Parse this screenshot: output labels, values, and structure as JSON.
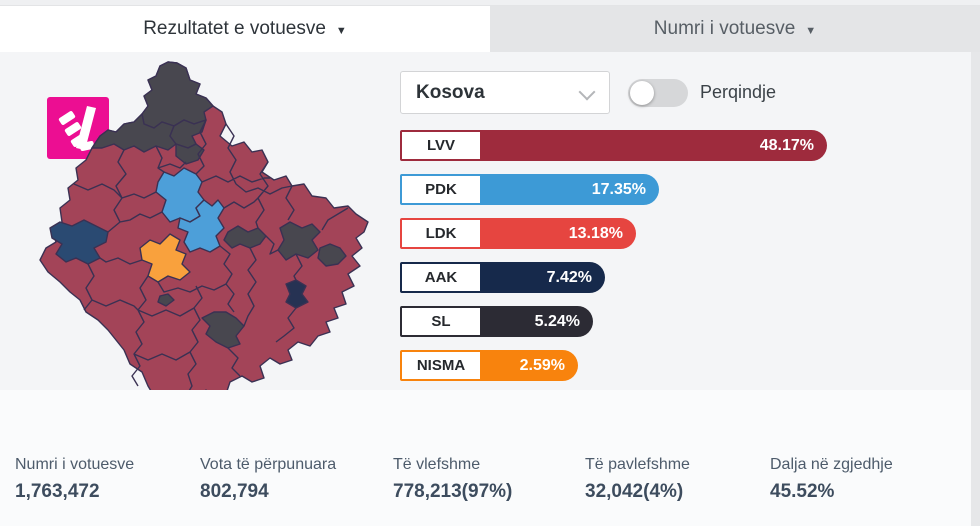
{
  "tabs": [
    {
      "label": "Rezultatet e votuesve",
      "caret": "▼",
      "active": true
    },
    {
      "label": "Numri i votuesve",
      "caret": "▼",
      "active": false
    }
  ],
  "controls": {
    "region_select": {
      "value": "Kosova"
    },
    "percentage_toggle": {
      "label": "Perqindje",
      "state": "off"
    }
  },
  "parties": [
    {
      "name": "LVV",
      "pct": "48.17%",
      "value": 48.17,
      "color": "#9e2b3d"
    },
    {
      "name": "PDK",
      "pct": "17.35%",
      "value": 17.35,
      "color": "#3d9ad6"
    },
    {
      "name": "LDK",
      "pct": "13.18%",
      "value": 13.18,
      "color": "#e64540"
    },
    {
      "name": "AAK",
      "pct": "7.42%",
      "value": 7.42,
      "color": "#16294b"
    },
    {
      "name": "SL",
      "pct": "5.24%",
      "value": 5.24,
      "color": "#2c2b34"
    },
    {
      "name": "NISMA",
      "pct": "2.59%",
      "value": 2.59,
      "color": "#f8830d"
    }
  ],
  "chart_data": {
    "type": "bar",
    "categories": [
      "LVV",
      "PDK",
      "LDK",
      "AAK",
      "SL",
      "NISMA"
    ],
    "values": [
      48.17,
      17.35,
      13.18,
      7.42,
      5.24,
      2.59
    ],
    "title": "",
    "xlabel": "",
    "ylabel": "",
    "unit": "%"
  },
  "stats": [
    {
      "label": "Numri i votuesve",
      "value": "1,763,472"
    },
    {
      "label": "Vota të përpunuara",
      "value": "802,794"
    },
    {
      "label": "Të vlefshme",
      "value": "778,213(97%)"
    },
    {
      "label": "Të pavlefshme",
      "value": "32,042(4%)"
    },
    {
      "label": "Dalja në zgjedhje",
      "value": "45.52%"
    }
  ],
  "map": {
    "colors": {
      "base": "#a34458",
      "gray": "#48474f",
      "blue": "#4d9fd9",
      "orange": "#f9a13d",
      "navy": "#2a4a72",
      "dark": "#263253",
      "border": "#3a3153"
    }
  },
  "logo": {
    "color": "#ec0e92",
    "glyph_color": "#ffffff"
  }
}
